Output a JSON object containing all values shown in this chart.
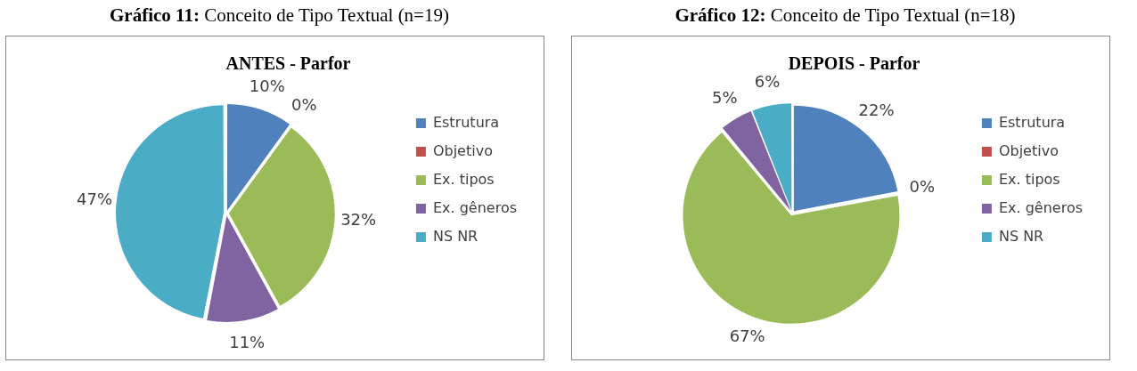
{
  "chart_data": [
    {
      "type": "pie",
      "title": "Gráfico 11: Conceito de Tipo Textual (n=19)",
      "subtitle": "ANTES - Parfor",
      "categories": [
        "Estrutura",
        "Objetivo",
        "Ex. tipos",
        "Ex. gêneros",
        "NS NR"
      ],
      "values": [
        10,
        0,
        32,
        11,
        47
      ],
      "colors": [
        "#4f81bd",
        "#c0504d",
        "#9bbb59",
        "#8064a2",
        "#4bacc6"
      ],
      "value_labels": [
        "10%",
        "0%",
        "32%",
        "11%",
        "47%"
      ],
      "legend": "right"
    },
    {
      "type": "pie",
      "title": "Gráfico 12: Conceito de Tipo Textual (n=18)",
      "subtitle": "DEPOIS - Parfor",
      "categories": [
        "Estrutura",
        "Objetivo",
        "Ex. tipos",
        "Ex. gêneros",
        "NS NR"
      ],
      "values": [
        22,
        0,
        67,
        5,
        6
      ],
      "colors": [
        "#4f81bd",
        "#c0504d",
        "#9bbb59",
        "#8064a2",
        "#4bacc6"
      ],
      "value_labels": [
        "22%",
        "0%",
        "67%",
        "5%",
        "6%"
      ],
      "legend": "right"
    }
  ]
}
